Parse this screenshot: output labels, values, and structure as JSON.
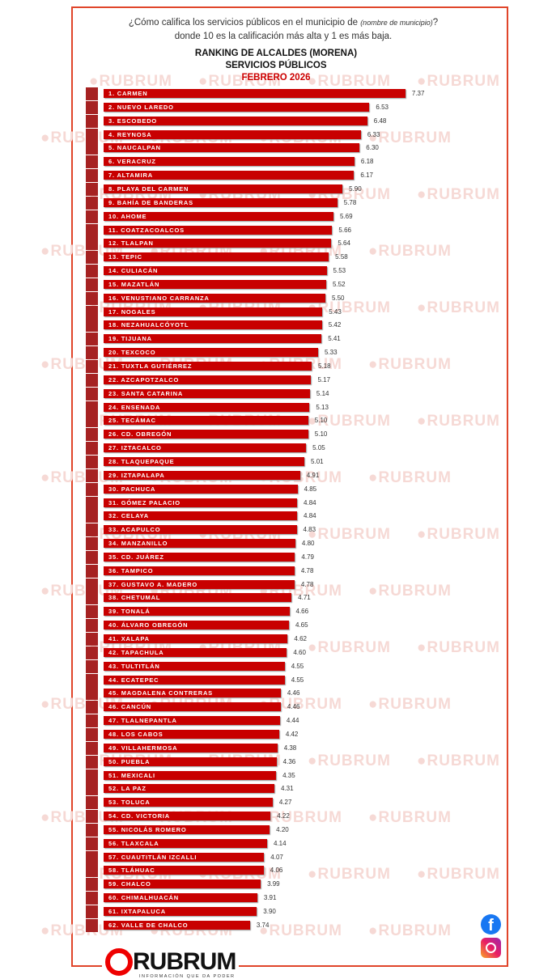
{
  "question": {
    "pre": "¿Cómo califica los servicios públicos en el municipio de ",
    "italic": "(nombre de municipio)",
    "post": "? donde 10 es la calificación más alta y 1 es más baja."
  },
  "watermark": "RUBRUM",
  "brand": {
    "name": "RUBRUM",
    "slogan": "INFORMACIÓN QUE DA PODER"
  },
  "social": {
    "facebook": "f"
  },
  "chart_data": {
    "type": "bar",
    "orientation": "horizontal",
    "title": "RANKING DE ALCALDES  (MORENA)",
    "subtitle": "SERVICIOS PÚBLICOS",
    "date": "FEBRERO 2026",
    "bar_color": "#c80000",
    "categories": [
      "1. CARMEN",
      "2. NUEVO LAREDO",
      "3. ESCOBEDO",
      "4. REYNOSA",
      "5. NAUCALPAN",
      "6. VERACRUZ",
      "7. ALTAMIRA",
      "8. PLAYA DEL CARMEN",
      "9. BAHÍA DE BANDERAS",
      "10. AHOME",
      "11. COATZACOALCOS",
      "12. TLALPAN",
      "13. TEPIC",
      "14. CULIACÁN",
      "15. MAZATLÁN",
      "16. VENUSTIANO CARRANZA",
      "17. NOGALES",
      "18. NEZAHUALCÓYOTL",
      "19. TIJUANA",
      "20. TEXCOCO",
      "21. TUXTLA GUTIÉRREZ",
      "22. AZCAPOTZALCO",
      "23. SANTA CATARINA",
      "24. ENSENADA",
      "25. TECÁMAC",
      "26. CD. OBREGÓN",
      "27. IZTACALCO",
      "28. TLAQUEPAQUE",
      "29. IZTAPALAPA",
      "30. PACHUCA",
      "31. GÓMEZ PALACIO",
      "32. CELAYA",
      "33. ACAPULCO",
      "34. MANZANILLO",
      "35. CD. JUÁREZ",
      "36. TAMPICO",
      "37. GUSTAVO A. MADERO",
      "38. CHETUMAL",
      "39. TONALÁ",
      "40. ÁLVARO OBREGÓN",
      "41. XALAPA",
      "42. TAPACHULA",
      "43. TULTITLÁN",
      "44. ECATEPEC",
      "45. MAGDALENA CONTRERAS",
      "46. CANCÚN",
      "47. TLALNEPANTLA",
      "48. LOS CABOS",
      "49. VILLAHERMOSA",
      "50. PUEBLA",
      "51. MEXICALI",
      "52. LA PAZ",
      "53. TOLUCA",
      "54. CD. VICTORIA",
      "55. NICOLÁS ROMERO",
      "56. TLAXCALA",
      "57. CUAUTITLÁN IZCALLI",
      "58. TLÁHUAC",
      "59. CHALCO",
      "60. CHIMALHUACÁN",
      "61. IXTAPALUCA",
      "62. VALLE DE CHALCO"
    ],
    "values": [
      "7.37",
      "6.53",
      "6.48",
      "6.33",
      "6.30",
      "6.18",
      "6.17",
      "5.90",
      "5.78",
      "5.69",
      "5.66",
      "5.64",
      "5.58",
      "5.53",
      "5.52",
      "5.50",
      "5.43",
      "5.42",
      "5.41",
      "5.33",
      "5.18",
      "5.17",
      "5.14",
      "5.13",
      "5.10",
      "5.10",
      "5.05",
      "5.01",
      "4.91",
      "4.85",
      "4.84",
      "4.84",
      "4.83",
      "4.80",
      "4.79",
      "4.78",
      "4.78",
      "4.71",
      "4.66",
      "4.65",
      "4.62",
      "4.60",
      "4.55",
      "4.55",
      "4.46",
      "4.46",
      "4.44",
      "4.42",
      "4.38",
      "4.36",
      "4.35",
      "4.31",
      "4.27",
      "4.22",
      "4.20",
      "4.14",
      "4.07",
      "4.06",
      "3.99",
      "3.91",
      "3.90",
      "3.74"
    ]
  }
}
